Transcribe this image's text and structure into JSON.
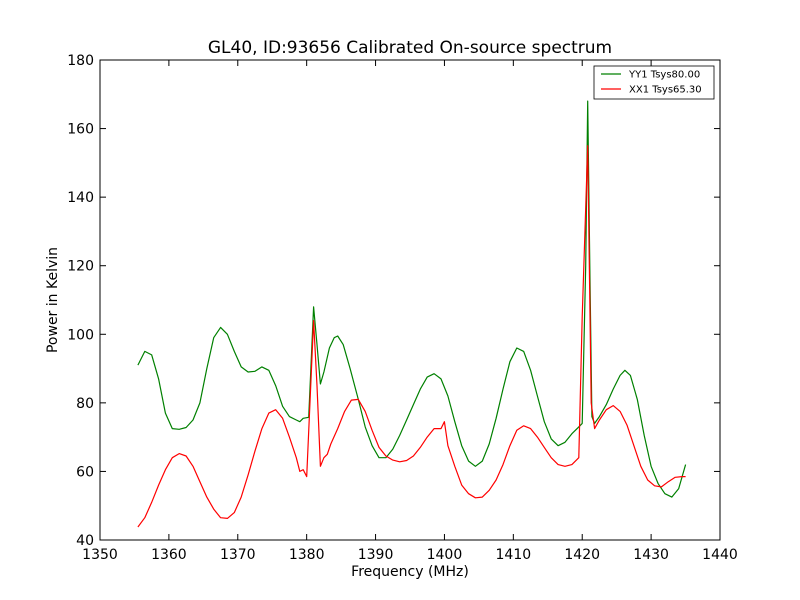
{
  "chart_data": {
    "type": "line",
    "title": "GL40, ID:93656 Calibrated On-source spectrum",
    "xlabel": "Frequency (MHz)",
    "ylabel": "Power in Kelvin",
    "xlim": [
      1350,
      1440
    ],
    "ylim": [
      40,
      180
    ],
    "xticks": [
      1350,
      1360,
      1370,
      1380,
      1390,
      1400,
      1410,
      1420,
      1430,
      1440
    ],
    "yticks": [
      40,
      60,
      80,
      100,
      120,
      140,
      160,
      180
    ],
    "grid": false,
    "legend_position": "top-right",
    "series": [
      {
        "name": "YY1 Tsys80.00",
        "color": "#008000",
        "points": [
          [
            1355.5,
            91
          ],
          [
            1356.5,
            95
          ],
          [
            1357.5,
            94
          ],
          [
            1358.5,
            87
          ],
          [
            1359.5,
            77
          ],
          [
            1360.5,
            72.5
          ],
          [
            1361.5,
            72.3
          ],
          [
            1362.5,
            72.8
          ],
          [
            1363.5,
            75
          ],
          [
            1364.5,
            80
          ],
          [
            1365.5,
            90
          ],
          [
            1366.5,
            99
          ],
          [
            1367.5,
            102
          ],
          [
            1368.5,
            100
          ],
          [
            1369.5,
            95
          ],
          [
            1370.5,
            90.5
          ],
          [
            1371.5,
            89
          ],
          [
            1372.5,
            89.2
          ],
          [
            1373.5,
            90.5
          ],
          [
            1374.5,
            89.5
          ],
          [
            1375.5,
            85
          ],
          [
            1376.5,
            79
          ],
          [
            1377.5,
            76
          ],
          [
            1378.5,
            75
          ],
          [
            1379.0,
            74.5
          ],
          [
            1379.5,
            75.5
          ],
          [
            1380.3,
            75.8
          ],
          [
            1381.0,
            108
          ],
          [
            1381.5,
            97
          ],
          [
            1382.0,
            85.5
          ],
          [
            1382.5,
            89
          ],
          [
            1383.3,
            96
          ],
          [
            1384.0,
            99
          ],
          [
            1384.5,
            99.5
          ],
          [
            1385.3,
            97
          ],
          [
            1386.3,
            90
          ],
          [
            1387.5,
            81
          ],
          [
            1388.5,
            73
          ],
          [
            1389.5,
            67.5
          ],
          [
            1390.5,
            64
          ],
          [
            1391.5,
            64
          ],
          [
            1392.5,
            66.5
          ],
          [
            1393.5,
            70.5
          ],
          [
            1394.5,
            75
          ],
          [
            1395.5,
            79.5
          ],
          [
            1396.5,
            84
          ],
          [
            1397.5,
            87.5
          ],
          [
            1398.5,
            88.5
          ],
          [
            1399.5,
            87
          ],
          [
            1400.5,
            82
          ],
          [
            1401.5,
            74.5
          ],
          [
            1402.5,
            67.5
          ],
          [
            1403.5,
            63
          ],
          [
            1404.5,
            61.5
          ],
          [
            1405.5,
            63
          ],
          [
            1406.5,
            68
          ],
          [
            1407.5,
            75.5
          ],
          [
            1408.5,
            84
          ],
          [
            1409.5,
            92
          ],
          [
            1410.5,
            96
          ],
          [
            1411.5,
            95
          ],
          [
            1412.5,
            89.5
          ],
          [
            1413.5,
            82
          ],
          [
            1414.5,
            74.5
          ],
          [
            1415.5,
            69.5
          ],
          [
            1416.5,
            67.5
          ],
          [
            1417.5,
            68.5
          ],
          [
            1418.5,
            71
          ],
          [
            1419.5,
            73
          ],
          [
            1420.0,
            74
          ],
          [
            1420.5,
            120
          ],
          [
            1420.8,
            168
          ],
          [
            1421.1,
            120
          ],
          [
            1421.4,
            76
          ],
          [
            1421.8,
            74
          ],
          [
            1422.5,
            76
          ],
          [
            1423.5,
            79.5
          ],
          [
            1424.5,
            84
          ],
          [
            1425.5,
            88
          ],
          [
            1426.2,
            89.5
          ],
          [
            1427.0,
            88
          ],
          [
            1428.0,
            81
          ],
          [
            1429.0,
            70.5
          ],
          [
            1430.0,
            61.5
          ],
          [
            1431.0,
            56.5
          ],
          [
            1432.0,
            53.5
          ],
          [
            1433.0,
            52.5
          ],
          [
            1434.0,
            55
          ],
          [
            1435.0,
            62
          ]
        ]
      },
      {
        "name": "XX1 Tsys65.30",
        "color": "#ff0000",
        "points": [
          [
            1355.5,
            43.8
          ],
          [
            1356.5,
            46.5
          ],
          [
            1357.5,
            51
          ],
          [
            1358.5,
            56
          ],
          [
            1359.5,
            60.5
          ],
          [
            1360.5,
            64
          ],
          [
            1361.5,
            65.2
          ],
          [
            1362.5,
            64.5
          ],
          [
            1363.5,
            61.5
          ],
          [
            1364.5,
            57
          ],
          [
            1365.5,
            52.5
          ],
          [
            1366.5,
            49
          ],
          [
            1367.5,
            46.5
          ],
          [
            1368.5,
            46.3
          ],
          [
            1369.5,
            48
          ],
          [
            1370.5,
            52.5
          ],
          [
            1371.5,
            59
          ],
          [
            1372.5,
            66
          ],
          [
            1373.5,
            72.5
          ],
          [
            1374.5,
            77
          ],
          [
            1375.5,
            78
          ],
          [
            1376.5,
            75.5
          ],
          [
            1377.5,
            70
          ],
          [
            1378.5,
            64
          ],
          [
            1379.0,
            60
          ],
          [
            1379.5,
            60.5
          ],
          [
            1380.0,
            58.5
          ],
          [
            1381.0,
            104
          ],
          [
            1381.5,
            85
          ],
          [
            1382.0,
            61.5
          ],
          [
            1382.5,
            64
          ],
          [
            1383.0,
            65
          ],
          [
            1383.5,
            68
          ],
          [
            1384.5,
            72.5
          ],
          [
            1385.5,
            77.5
          ],
          [
            1386.5,
            80.8
          ],
          [
            1387.5,
            81
          ],
          [
            1388.5,
            77.5
          ],
          [
            1389.5,
            72
          ],
          [
            1390.5,
            67
          ],
          [
            1391.5,
            64.5
          ],
          [
            1392.5,
            63.3
          ],
          [
            1393.5,
            62.8
          ],
          [
            1394.5,
            63.2
          ],
          [
            1395.5,
            64.5
          ],
          [
            1396.5,
            67
          ],
          [
            1397.5,
            70
          ],
          [
            1398.5,
            72.5
          ],
          [
            1399.5,
            72.5
          ],
          [
            1400.0,
            74.5
          ],
          [
            1400.5,
            67.5
          ],
          [
            1401.5,
            61.5
          ],
          [
            1402.5,
            56
          ],
          [
            1403.5,
            53.5
          ],
          [
            1404.5,
            52.3
          ],
          [
            1405.5,
            52.5
          ],
          [
            1406.5,
            54.5
          ],
          [
            1407.5,
            57.5
          ],
          [
            1408.5,
            62
          ],
          [
            1409.5,
            67.5
          ],
          [
            1410.5,
            72
          ],
          [
            1411.5,
            73.3
          ],
          [
            1412.5,
            72.5
          ],
          [
            1413.5,
            70
          ],
          [
            1414.5,
            67
          ],
          [
            1415.5,
            64
          ],
          [
            1416.5,
            62
          ],
          [
            1417.5,
            61.5
          ],
          [
            1418.5,
            62
          ],
          [
            1419.5,
            64
          ],
          [
            1420.0,
            105
          ],
          [
            1420.8,
            155
          ],
          [
            1421.3,
            80
          ],
          [
            1421.8,
            72.5
          ],
          [
            1422.5,
            75
          ],
          [
            1423.5,
            78
          ],
          [
            1424.5,
            79.2
          ],
          [
            1425.5,
            77.5
          ],
          [
            1426.5,
            73.5
          ],
          [
            1427.5,
            67.5
          ],
          [
            1428.5,
            61.5
          ],
          [
            1429.5,
            57.5
          ],
          [
            1430.5,
            55.8
          ],
          [
            1431.5,
            55.5
          ],
          [
            1432.5,
            57
          ],
          [
            1433.5,
            58.3
          ],
          [
            1434.5,
            58.5
          ],
          [
            1435.0,
            58.5
          ]
        ]
      }
    ]
  }
}
